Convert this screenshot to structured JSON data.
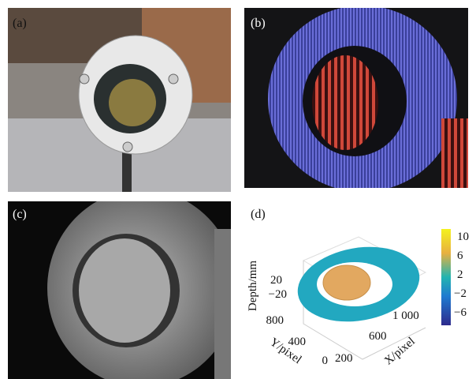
{
  "panels": [
    {
      "label": "(a)"
    },
    {
      "label": "(b)"
    },
    {
      "label": "(c)"
    },
    {
      "label": "(d)"
    }
  ],
  "plot": {
    "z_label": "Depth/mm",
    "y_label": "Y/pixel",
    "x_label": "X/pixel",
    "z_ticks": [
      "20",
      "−20"
    ],
    "y_ticks": [
      "800",
      "400",
      "0"
    ],
    "x_ticks": [
      "1 000",
      "600",
      "200"
    ],
    "colorbar_ticks": [
      "10",
      "6",
      "2",
      "−2",
      "−6"
    ]
  }
}
